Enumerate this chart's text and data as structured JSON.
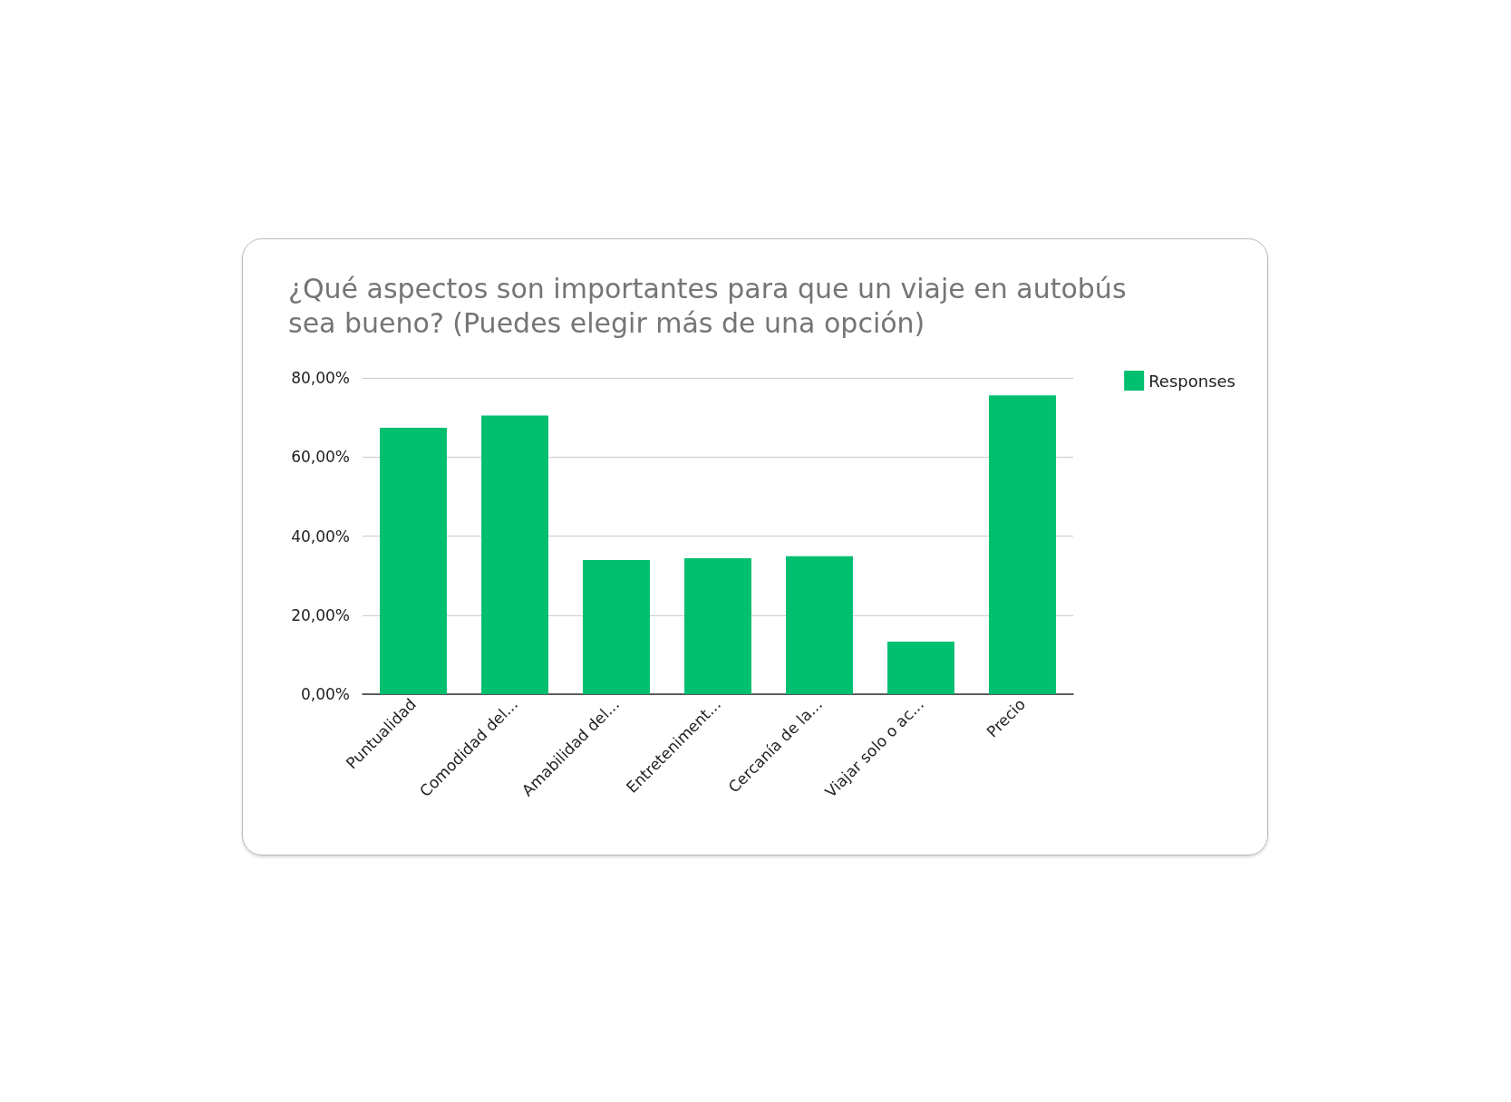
{
  "chart_data": {
    "type": "bar",
    "title": "¿Qué aspectos son importantes para que un viaje en autobús sea bueno? (Puedes elegir más de una opción)",
    "categories": [
      "Puntualidad",
      "Comodidad del...",
      "Amabilidad del...",
      "Entreteniment...",
      "Cercanía de la...",
      "Viajar solo o ac...",
      "Precio"
    ],
    "series": [
      {
        "name": "Responses",
        "color": "#00bf6f",
        "values": [
          67.4,
          70.5,
          33.9,
          34.4,
          34.9,
          13.3,
          75.6
        ]
      }
    ],
    "ylim": [
      0,
      80
    ],
    "yticks": [
      {
        "value": 0,
        "label": "0,00%"
      },
      {
        "value": 20,
        "label": "20,00%"
      },
      {
        "value": 40,
        "label": "40,00%"
      },
      {
        "value": 60,
        "label": "60,00%"
      },
      {
        "value": 80,
        "label": "80,00%"
      }
    ],
    "grid": "y",
    "legend": "top right"
  }
}
